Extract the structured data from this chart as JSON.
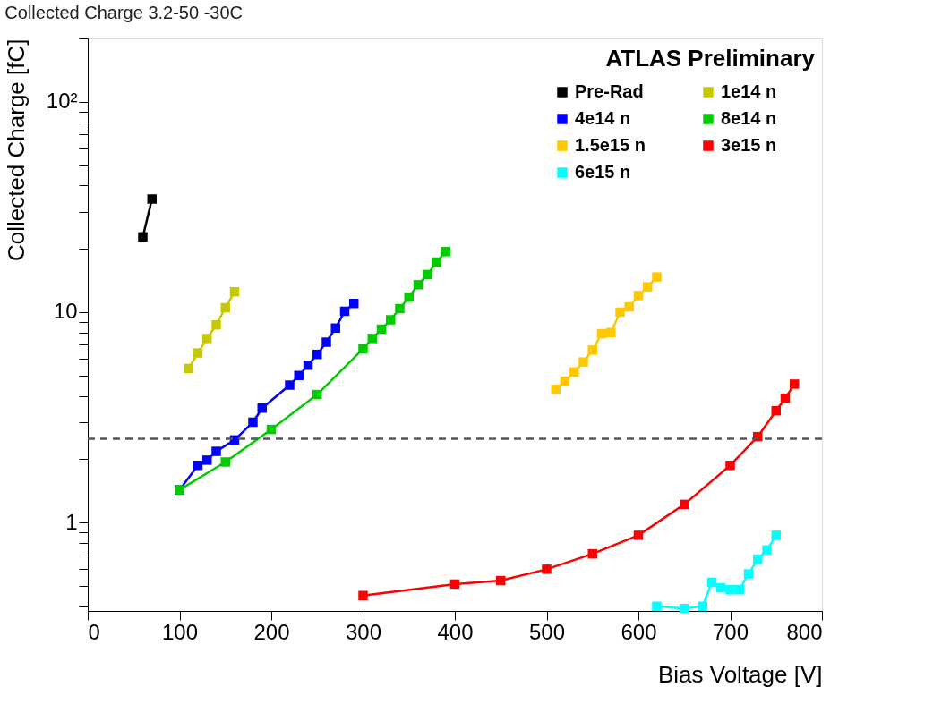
{
  "chart_data": {
    "type": "line",
    "title": "Collected Charge 3.2-50 -30C",
    "xlabel": "Bias Voltage [V]",
    "ylabel": "Collected Charge [fC]",
    "annotations": [
      "ATLAS Preliminary"
    ],
    "log": "y",
    "xlim": [
      0,
      800
    ],
    "xticks": [
      0,
      100,
      200,
      300,
      400,
      500,
      600,
      700,
      800
    ],
    "ylim": [
      0.38,
      200
    ],
    "yticks": [
      {
        "value": 0.4,
        "label": null
      },
      {
        "value": 0.5,
        "label": null
      },
      {
        "value": 0.6,
        "label": null
      },
      {
        "value": 0.7,
        "label": null
      },
      {
        "value": 0.8,
        "label": null
      },
      {
        "value": 0.9,
        "label": null
      },
      1,
      {
        "value": 2,
        "label": null
      },
      {
        "value": 3,
        "label": null
      },
      {
        "value": 4,
        "label": null
      },
      {
        "value": 5,
        "label": null
      },
      {
        "value": 6,
        "label": null
      },
      {
        "value": 7,
        "label": null
      },
      {
        "value": 8,
        "label": null
      },
      {
        "value": 9,
        "label": null
      },
      10,
      {
        "value": 20,
        "label": null
      },
      {
        "value": 30,
        "label": null
      },
      {
        "value": 40,
        "label": null
      },
      {
        "value": 50,
        "label": null
      },
      {
        "value": 60,
        "label": null
      },
      {
        "value": 70,
        "label": null
      },
      {
        "value": 80,
        "label": null
      },
      {
        "value": 90,
        "label": null
      },
      {
        "value": 100,
        "label": "10²"
      },
      {
        "value": 200,
        "label": null
      }
    ],
    "grid": false,
    "legend": "top right",
    "marker": "square",
    "line_style": "solid",
    "ref_lines": [
      {
        "axis": "y",
        "value": 2.5,
        "color": "#555555",
        "line_style": "dashed"
      }
    ],
    "series": [
      {
        "name": "Pre-Rad",
        "color": "#000000",
        "x": [
          60,
          70
        ],
        "values": [
          22.8,
          34.5
        ]
      },
      {
        "name": "1e14 n",
        "color": "#c8c800",
        "x": [
          110,
          120,
          130,
          140,
          150,
          160
        ],
        "values": [
          5.4,
          6.4,
          7.5,
          8.7,
          10.5,
          12.5
        ]
      },
      {
        "name": "4e14 n",
        "color": "#0000ff",
        "x": [
          100,
          120,
          130,
          140,
          160,
          180,
          190,
          220,
          230,
          240,
          250,
          260,
          270,
          280,
          290
        ],
        "values": [
          1.43,
          1.87,
          1.98,
          2.18,
          2.47,
          3.0,
          3.5,
          4.5,
          5.0,
          5.6,
          6.3,
          7.2,
          8.4,
          10.1,
          11.0
        ]
      },
      {
        "name": "8e14 n",
        "color": "#00cc00",
        "x": [
          100,
          150,
          200,
          250,
          300,
          310,
          320,
          330,
          340,
          350,
          360,
          370,
          380,
          390
        ],
        "values": [
          1.43,
          1.94,
          2.77,
          4.06,
          6.7,
          7.5,
          8.3,
          9.2,
          10.4,
          11.8,
          13.5,
          15.1,
          17.3,
          19.4
        ]
      },
      {
        "name": "1.5e15 n",
        "color": "#ffc800",
        "x": [
          510,
          520,
          530,
          540,
          550,
          560,
          570,
          580,
          590,
          600,
          610,
          620
        ],
        "values": [
          4.3,
          4.7,
          5.2,
          5.8,
          6.6,
          7.9,
          8.0,
          10.0,
          10.6,
          12.0,
          13.2,
          14.7
        ]
      },
      {
        "name": "3e15 n",
        "color": "#ff0000",
        "x": [
          300,
          400,
          450,
          500,
          550,
          600,
          650,
          700,
          730,
          750,
          760,
          770
        ],
        "values": [
          0.45,
          0.51,
          0.53,
          0.6,
          0.71,
          0.87,
          1.22,
          1.87,
          2.56,
          3.4,
          3.9,
          4.55
        ]
      },
      {
        "name": "6e15 n",
        "color": "#00ffff",
        "x": [
          620,
          650,
          670,
          680,
          690,
          700,
          710,
          720,
          730,
          740,
          750
        ],
        "values": [
          0.4,
          0.39,
          0.4,
          0.52,
          0.49,
          0.48,
          0.48,
          0.57,
          0.67,
          0.74,
          0.87
        ]
      }
    ]
  }
}
